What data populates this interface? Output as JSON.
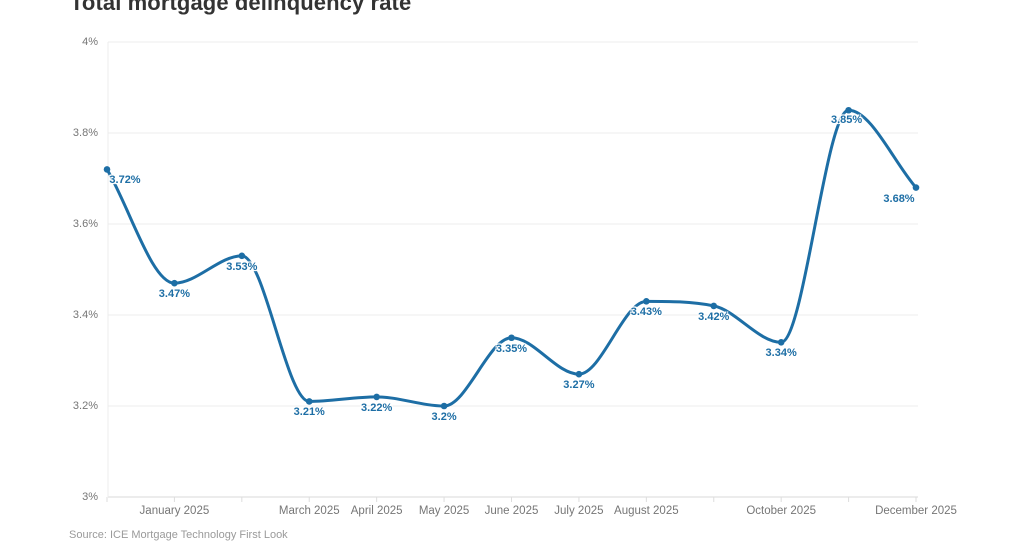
{
  "title": "Total mortgage delinquency rate",
  "source_note": "Source: ICE Mortgage Technology First Look",
  "colors": {
    "background": "#ffffff",
    "line": "#1d6ea5",
    "marker": "#1d6ea5",
    "data_label": "#1d6ea5",
    "axis_text": "#767676",
    "grid_line": "#ececec",
    "axis_line": "#d9d9d9",
    "tick_mark": "#dddddd",
    "title_text": "#333333",
    "source_text": "#9a9a9a"
  },
  "chart_data": {
    "type": "line",
    "title": "Total mortgage delinquency rate",
    "xlabel": "",
    "ylabel": "",
    "unit": "%",
    "ylim": [
      3,
      4
    ],
    "grid": "horizontal",
    "legend": "none",
    "series_count": 1,
    "values": [
      3.72,
      3.47,
      3.53,
      3.21,
      3.22,
      3.2,
      3.35,
      3.27,
      3.43,
      3.42,
      3.34,
      3.85,
      3.68
    ],
    "data_labels": [
      "3.72%",
      "3.47%",
      "3.53%",
      "3.21%",
      "3.22%",
      "3.2%",
      "3.35%",
      "3.27%",
      "3.43%",
      "3.42%",
      "3.34%",
      "3.85%",
      "3.68%"
    ],
    "x_axis_labels": [
      {
        "index": 1,
        "label": "January 2025"
      },
      {
        "index": 3,
        "label": "March 2025"
      },
      {
        "index": 4,
        "label": "April 2025"
      },
      {
        "index": 5,
        "label": "May 2025"
      },
      {
        "index": 6,
        "label": "June 2025"
      },
      {
        "index": 7,
        "label": "July 2025"
      },
      {
        "index": 8,
        "label": "August 2025"
      },
      {
        "index": 10,
        "label": "October 2025"
      },
      {
        "index": 12,
        "label": "December 2025"
      }
    ],
    "y_axis_labels": [
      {
        "value": 4,
        "label": "4%"
      },
      {
        "value": 3.8,
        "label": "3.8%"
      },
      {
        "value": 3.6,
        "label": "3.6%"
      },
      {
        "value": 3.4,
        "label": "3.4%"
      },
      {
        "value": 3.2,
        "label": "3.2%"
      },
      {
        "value": 3,
        "label": "3%"
      }
    ]
  }
}
